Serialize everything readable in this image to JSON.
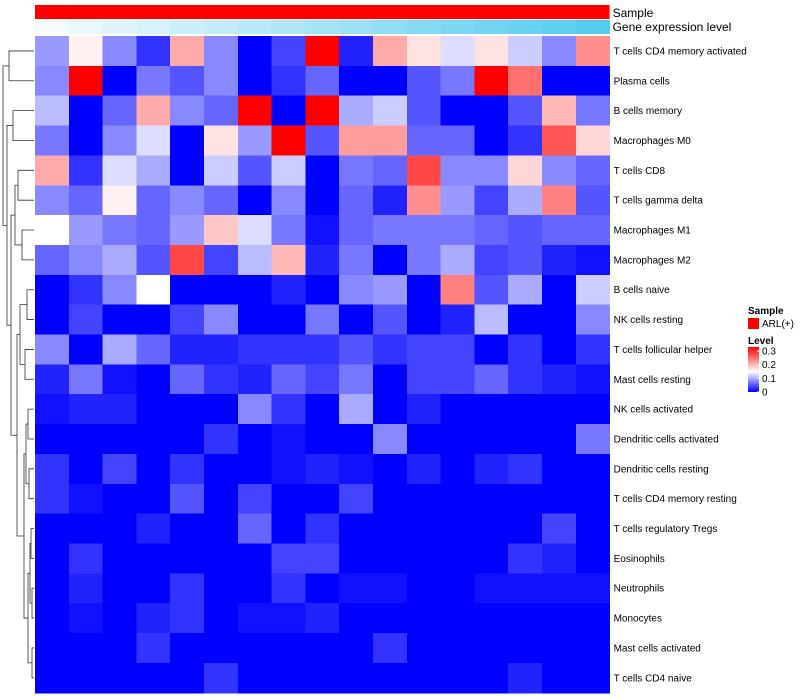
{
  "chart_data": {
    "type": "heatmap",
    "title": "",
    "xlabel": "",
    "ylabel": "",
    "annotation_tracks": [
      {
        "name": "Sample",
        "value": "ARL(+)",
        "color": "#ff0000"
      },
      {
        "name": "Gene expression level",
        "gradient": [
          "#f4fbfd",
          "#55cbef"
        ]
      }
    ],
    "rows": [
      "T cells CD4 memory activated",
      "Plasma cells",
      "B cells memory",
      "Macrophages M0",
      "T cells CD8",
      "T cells gamma delta",
      "Macrophages M1",
      "Macrophages M2",
      "B cells naive",
      "NK cells resting",
      "T cells follicular helper",
      "Mast cells resting",
      "NK cells activated",
      "Dendritic cells activated",
      "Dendritic cells resting",
      "T cells CD4 memory resting",
      "T cells regulatory  Tregs",
      "Eosinophils",
      "Neutrophils",
      "Monocytes",
      "Mast cells activated",
      "T cells CD4 naive"
    ],
    "n_columns": 17,
    "values": [
      [
        0.09,
        0.16,
        0.08,
        0.03,
        0.21,
        0.08,
        0.0,
        0.04,
        0.33,
        0.02,
        0.21,
        0.17,
        0.13,
        0.17,
        0.12,
        0.08,
        0.23
      ],
      [
        0.08,
        0.33,
        0.0,
        0.07,
        0.05,
        0.08,
        0.0,
        0.03,
        0.06,
        0.0,
        0.0,
        0.05,
        0.07,
        0.33,
        0.25,
        0.0,
        0.0
      ],
      [
        0.11,
        0.0,
        0.06,
        0.21,
        0.08,
        0.06,
        0.33,
        0.0,
        0.33,
        0.1,
        0.12,
        0.05,
        0.0,
        0.0,
        0.05,
        0.2,
        0.07
      ],
      [
        0.07,
        0.0,
        0.08,
        0.13,
        0.0,
        0.17,
        0.09,
        0.33,
        0.05,
        0.22,
        0.22,
        0.06,
        0.06,
        0.0,
        0.03,
        0.27,
        0.18
      ],
      [
        0.21,
        0.03,
        0.13,
        0.1,
        0.0,
        0.12,
        0.05,
        0.12,
        0.0,
        0.07,
        0.06,
        0.28,
        0.08,
        0.08,
        0.18,
        0.08,
        0.06
      ],
      [
        0.08,
        0.06,
        0.16,
        0.06,
        0.08,
        0.06,
        0.0,
        0.08,
        0.0,
        0.06,
        0.02,
        0.23,
        0.09,
        0.04,
        0.1,
        0.24,
        0.05
      ],
      [
        0.15,
        0.09,
        0.07,
        0.06,
        0.09,
        0.19,
        0.13,
        0.07,
        0.01,
        0.06,
        0.07,
        0.07,
        0.07,
        0.06,
        0.05,
        0.06,
        0.06
      ],
      [
        0.06,
        0.08,
        0.1,
        0.05,
        0.28,
        0.04,
        0.11,
        0.2,
        0.02,
        0.07,
        0.0,
        0.07,
        0.1,
        0.04,
        0.05,
        0.02,
        0.01
      ],
      [
        0.0,
        0.03,
        0.08,
        0.15,
        0.0,
        0.0,
        0.0,
        0.02,
        0.0,
        0.08,
        0.09,
        0.0,
        0.24,
        0.05,
        0.1,
        0.0,
        0.12
      ],
      [
        0.0,
        0.04,
        0.0,
        0.0,
        0.04,
        0.08,
        0.0,
        0.0,
        0.07,
        0.0,
        0.05,
        0.0,
        0.02,
        0.11,
        0.0,
        0.0,
        0.08
      ],
      [
        0.08,
        0.0,
        0.1,
        0.06,
        0.02,
        0.02,
        0.03,
        0.03,
        0.03,
        0.05,
        0.03,
        0.04,
        0.04,
        0.0,
        0.03,
        0.0,
        0.03
      ],
      [
        0.02,
        0.07,
        0.01,
        0.0,
        0.06,
        0.03,
        0.02,
        0.06,
        0.04,
        0.07,
        0.0,
        0.04,
        0.04,
        0.06,
        0.03,
        0.02,
        0.01
      ],
      [
        0.01,
        0.02,
        0.02,
        0.0,
        0.0,
        0.0,
        0.08,
        0.03,
        0.0,
        0.1,
        0.0,
        0.02,
        0.0,
        0.0,
        0.0,
        0.0,
        0.0
      ],
      [
        0.0,
        0.0,
        0.0,
        0.0,
        0.0,
        0.03,
        0.0,
        0.01,
        0.0,
        0.0,
        0.08,
        0.0,
        0.0,
        0.0,
        0.0,
        0.0,
        0.07
      ],
      [
        0.03,
        0.0,
        0.04,
        0.0,
        0.03,
        0.0,
        0.0,
        0.01,
        0.02,
        0.01,
        0.0,
        0.02,
        0.0,
        0.02,
        0.03,
        0.0,
        0.0
      ],
      [
        0.03,
        0.01,
        0.0,
        0.0,
        0.05,
        0.0,
        0.04,
        0.0,
        0.0,
        0.04,
        0.0,
        0.0,
        0.0,
        0.0,
        0.0,
        0.0,
        0.0
      ],
      [
        0.0,
        0.0,
        0.0,
        0.02,
        0.0,
        0.0,
        0.06,
        0.0,
        0.03,
        0.0,
        0.0,
        0.0,
        0.0,
        0.0,
        0.0,
        0.04,
        0.0
      ],
      [
        0.0,
        0.03,
        0.0,
        0.0,
        0.0,
        0.0,
        0.0,
        0.04,
        0.04,
        0.0,
        0.0,
        0.0,
        0.0,
        0.0,
        0.03,
        0.02,
        0.0
      ],
      [
        0.0,
        0.02,
        0.0,
        0.0,
        0.03,
        0.0,
        0.0,
        0.03,
        0.0,
        0.01,
        0.01,
        0.0,
        0.0,
        0.01,
        0.01,
        0.01,
        0.01
      ],
      [
        0.0,
        0.01,
        0.0,
        0.02,
        0.03,
        0.0,
        0.01,
        0.01,
        0.02,
        0.0,
        0.0,
        0.0,
        0.0,
        0.0,
        0.0,
        0.0,
        0.0
      ],
      [
        0.0,
        0.0,
        0.0,
        0.03,
        0.0,
        0.0,
        0.0,
        0.0,
        0.0,
        0.0,
        0.03,
        0.0,
        0.0,
        0.0,
        0.0,
        0.0,
        0.0
      ],
      [
        0.0,
        0.0,
        0.0,
        0.0,
        0.0,
        0.03,
        0.0,
        0.0,
        0.0,
        0.0,
        0.0,
        0.0,
        0.0,
        0.0,
        0.02,
        0.0,
        0.0
      ]
    ],
    "color_scale": {
      "min": 0,
      "mid": 0.15,
      "max": 0.33,
      "low_color": "#0000ff",
      "mid_color": "#ffffff",
      "high_color": "#ff0000"
    },
    "legend": {
      "sample_title": "Sample",
      "sample_entry": "ARL(+)",
      "sample_color": "#ff0000",
      "level_title": "Level",
      "ticks": [
        0.3,
        0.2,
        0.1,
        0
      ],
      "tick_labels": [
        "0.3",
        "0.2",
        "0.1",
        "0"
      ]
    },
    "row_dendrogram": true,
    "grid": false
  }
}
